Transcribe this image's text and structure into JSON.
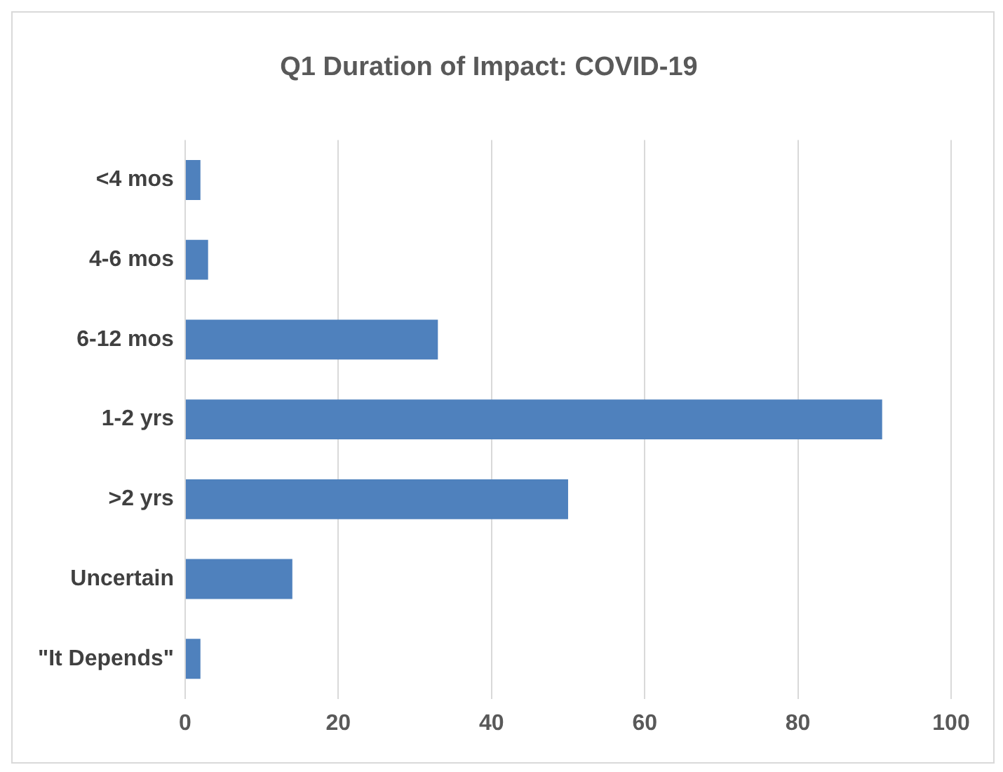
{
  "chart_data": {
    "type": "bar",
    "orientation": "horizontal",
    "title": "Q1 Duration of Impact: COVID-19",
    "categories": [
      "<4 mos",
      "4-6 mos",
      "6-12 mos",
      "1-2 yrs",
      ">2 yrs",
      "Uncertain",
      "\"It Depends\""
    ],
    "values": [
      2,
      3,
      33,
      91,
      50,
      14,
      2
    ],
    "color": "#4f81bd",
    "xlim": [
      0,
      100
    ],
    "xticks": [
      0,
      20,
      40,
      60,
      80,
      100
    ],
    "grid": "x"
  }
}
